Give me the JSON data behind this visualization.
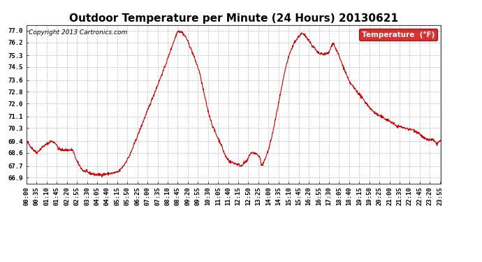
{
  "title": "Outdoor Temperature per Minute (24 Hours) 20130621",
  "copyright_text": "Copyright 2013 Cartronics.com",
  "legend_label": "Temperature  (°F)",
  "ylabel_ticks": [
    66.9,
    67.7,
    68.6,
    69.4,
    70.3,
    71.1,
    72.0,
    72.8,
    73.6,
    74.5,
    75.3,
    76.2,
    77.0
  ],
  "ylim": [
    66.5,
    77.4
  ],
  "line_color": "#cc0000",
  "bg_color": "#ffffff",
  "grid_color": "#bbbbbb",
  "legend_bg": "#cc0000",
  "legend_text_color": "#ffffff",
  "title_fontsize": 11,
  "tick_fontsize": 6.5,
  "copyright_fontsize": 6.5
}
